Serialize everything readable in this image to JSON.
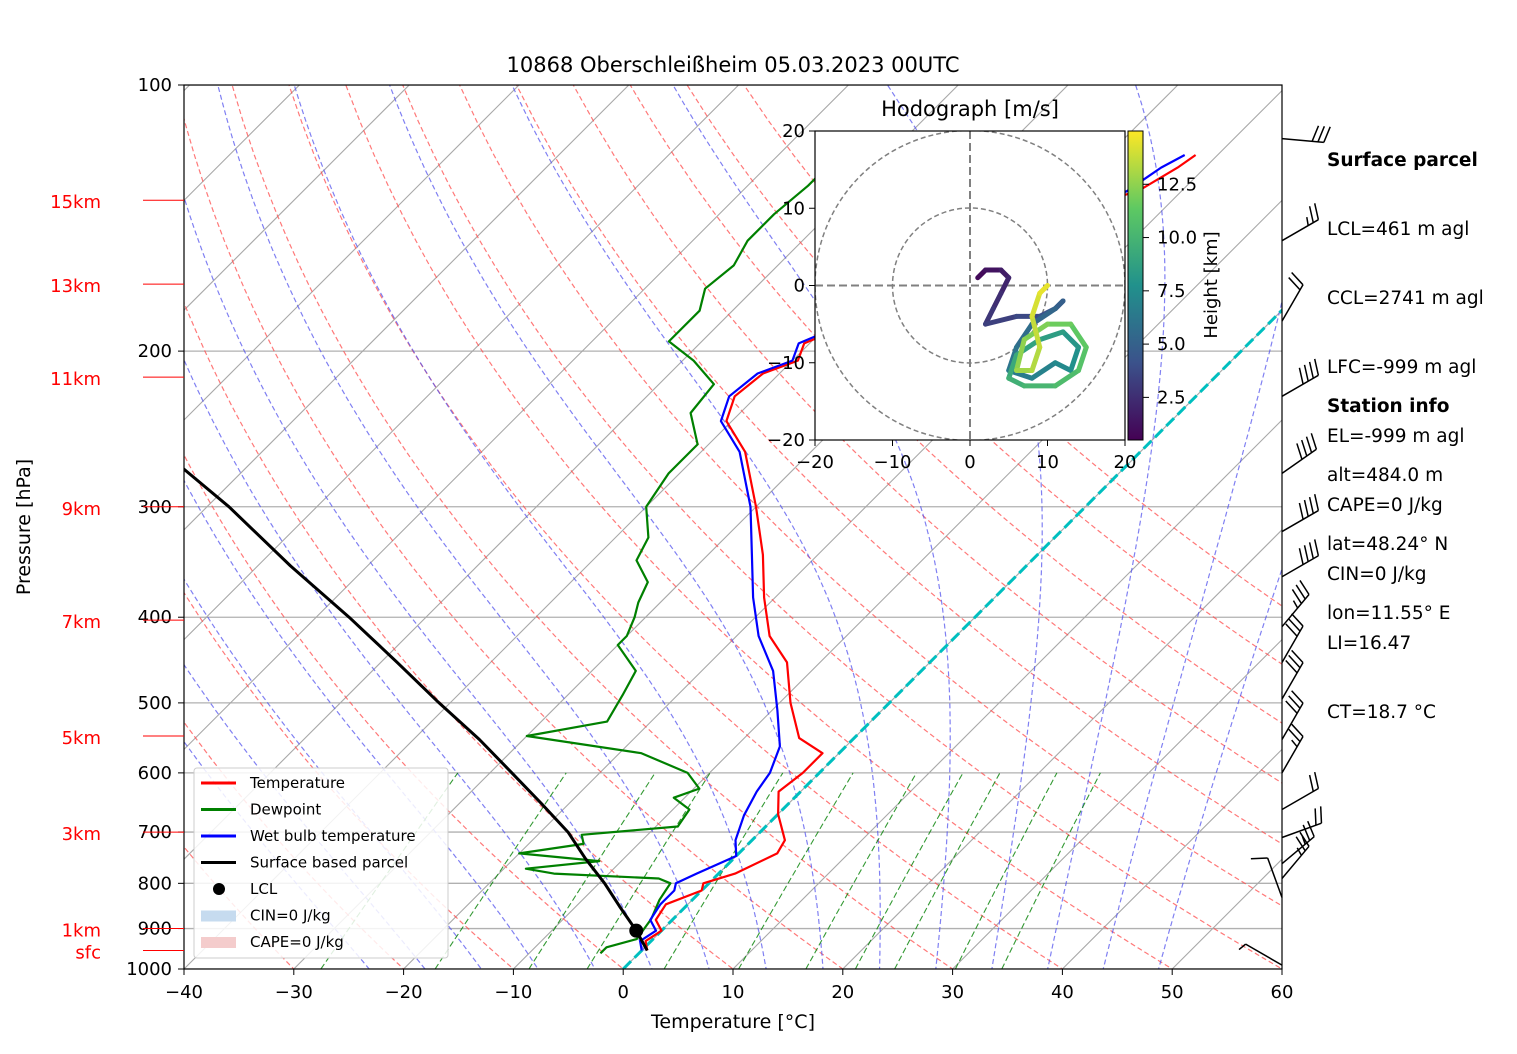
{
  "chart_data": {
    "type": "skew-t",
    "title": "10868 Oberschleißheim 05.03.2023 00UTC",
    "xlabel": "Temperature [°C]",
    "ylabel": "Pressure [hPa]",
    "xlim": [
      -40,
      60
    ],
    "ylim": [
      1000,
      100
    ],
    "y_scale": "log",
    "x_ticks": [
      -40,
      -30,
      -20,
      -10,
      0,
      10,
      20,
      30,
      40,
      50,
      60
    ],
    "y_ticks": [
      100,
      200,
      300,
      400,
      500,
      600,
      700,
      800,
      900,
      1000
    ],
    "height_labels": [
      {
        "label": "15km",
        "p": 135
      },
      {
        "label": "13km",
        "p": 168
      },
      {
        "label": "11km",
        "p": 214
      },
      {
        "label": "9km",
        "p": 300
      },
      {
        "label": "7km",
        "p": 403
      },
      {
        "label": "5km",
        "p": 545
      },
      {
        "label": "3km",
        "p": 700
      },
      {
        "label": "1km",
        "p": 900
      },
      {
        "label": "sfc",
        "p": 953
      }
    ],
    "series": [
      {
        "name": "Temperature",
        "color": "#ff0000",
        "points": [
          [
            0.5,
            953
          ],
          [
            -0.5,
            930
          ],
          [
            0.0,
            905
          ],
          [
            -1.5,
            880
          ],
          [
            -2.0,
            845
          ],
          [
            0.0,
            815
          ],
          [
            -0.5,
            800
          ],
          [
            1.5,
            780
          ],
          [
            3.5,
            740
          ],
          [
            3.0,
            715
          ],
          [
            0.0,
            668
          ],
          [
            -2.0,
            630
          ],
          [
            -1.5,
            600
          ],
          [
            -1.5,
            570
          ],
          [
            -5.0,
            548
          ],
          [
            -9.0,
            500
          ],
          [
            -13.0,
            450
          ],
          [
            -17.0,
            420
          ],
          [
            -21.0,
            380
          ],
          [
            -25.0,
            340
          ],
          [
            -30.0,
            300
          ],
          [
            -36.0,
            260
          ],
          [
            -40.5,
            240
          ],
          [
            -42.0,
            225
          ],
          [
            -41.5,
            212
          ],
          [
            -39.5,
            205
          ],
          [
            -40.5,
            196
          ],
          [
            -38.5,
            188
          ],
          [
            -39.5,
            180
          ],
          [
            -37.0,
            170
          ],
          [
            -36.5,
            160
          ],
          [
            -32.0,
            150
          ],
          [
            -31.0,
            142
          ],
          [
            -24.0,
            132
          ],
          [
            -22.5,
            124
          ],
          [
            -22.0,
            120
          ]
        ]
      },
      {
        "name": "Dewpoint",
        "color": "#008000",
        "points": [
          [
            -3.5,
            960
          ],
          [
            -3.5,
            945
          ],
          [
            -1.5,
            925
          ],
          [
            -2.0,
            878
          ],
          [
            -3.0,
            835
          ],
          [
            -3.5,
            800
          ],
          [
            -5.0,
            790
          ],
          [
            -15.0,
            780
          ],
          [
            -18.0,
            770
          ],
          [
            -12.0,
            755
          ],
          [
            -20.0,
            740
          ],
          [
            -15.0,
            722
          ],
          [
            -16.0,
            705
          ],
          [
            -8.0,
            690
          ],
          [
            -8.5,
            660
          ],
          [
            -11.0,
            640
          ],
          [
            -9.5,
            625
          ],
          [
            -12.0,
            600
          ],
          [
            -18.0,
            570
          ],
          [
            -30.0,
            545
          ],
          [
            -24.0,
            525
          ],
          [
            -25.0,
            490
          ],
          [
            -26.0,
            460
          ],
          [
            -30.0,
            430
          ],
          [
            -30.0,
            420
          ],
          [
            -31.0,
            400
          ],
          [
            -32.0,
            385
          ],
          [
            -33.0,
            365
          ],
          [
            -36.0,
            345
          ],
          [
            -37.0,
            325
          ],
          [
            -40.0,
            300
          ],
          [
            -41.0,
            275
          ],
          [
            -41.0,
            255
          ],
          [
            -44.5,
            235
          ],
          [
            -45.0,
            218
          ],
          [
            -49.0,
            205
          ],
          [
            -53.0,
            195
          ],
          [
            -53.0,
            180
          ],
          [
            -54.5,
            170
          ],
          [
            -54.0,
            160
          ],
          [
            -55.0,
            150
          ],
          [
            -55.0,
            140
          ],
          [
            -54.5,
            130
          ],
          [
            -54.5,
            124
          ]
        ]
      },
      {
        "name": "Wet bulb temperature",
        "color": "#0000ff",
        "points": [
          [
            0.0,
            953
          ],
          [
            -1.0,
            930
          ],
          [
            -0.5,
            905
          ],
          [
            -2.0,
            880
          ],
          [
            -2.5,
            845
          ],
          [
            -2.5,
            815
          ],
          [
            -3.0,
            800
          ],
          [
            -2.0,
            780
          ],
          [
            0.0,
            745
          ],
          [
            -1.5,
            715
          ],
          [
            -3.0,
            670
          ],
          [
            -4.0,
            630
          ],
          [
            -4.5,
            600
          ],
          [
            -6.0,
            560
          ],
          [
            -9.5,
            510
          ],
          [
            -13.5,
            460
          ],
          [
            -18.0,
            420
          ],
          [
            -22.0,
            380
          ],
          [
            -26.0,
            340
          ],
          [
            -30.5,
            300
          ],
          [
            -36.5,
            260
          ],
          [
            -41.0,
            240
          ],
          [
            -42.5,
            225
          ],
          [
            -42.0,
            212
          ],
          [
            -40.0,
            205
          ],
          [
            -41.0,
            196
          ],
          [
            -39.0,
            188
          ],
          [
            -40.0,
            180
          ],
          [
            -37.5,
            170
          ],
          [
            -37.0,
            160
          ],
          [
            -33.0,
            150
          ],
          [
            -31.5,
            142
          ],
          [
            -25.0,
            132
          ],
          [
            -24.0,
            124
          ],
          [
            -23.0,
            120
          ]
        ]
      },
      {
        "name": "Surface based parcel",
        "color": "#000000",
        "points": [
          [
            0.5,
            953
          ],
          [
            -2.3,
            905
          ],
          [
            -6.0,
            850
          ],
          [
            -9.5,
            800
          ],
          [
            -13.5,
            750
          ],
          [
            -17.5,
            700
          ],
          [
            -22.5,
            650
          ],
          [
            -28.0,
            600
          ],
          [
            -34.0,
            550
          ],
          [
            -41.0,
            500
          ],
          [
            -48.5,
            450
          ],
          [
            -57.0,
            400
          ],
          [
            -67.0,
            350
          ],
          [
            -78.0,
            300
          ],
          [
            -92.0,
            250
          ]
        ]
      },
      {
        "name": "LCL",
        "color": "#000000",
        "points": [
          [
            -2.3,
            905
          ]
        ]
      },
      {
        "name": "CIN=0 J/kg",
        "color": "#c6dbef",
        "points": []
      },
      {
        "name": "CAPE=0 J/kg",
        "color": "#f4cccc",
        "points": []
      }
    ],
    "legend_position": "lower-left",
    "grid": true,
    "hodograph": {
      "title": "Hodograph [m/s]",
      "xlim": [
        -20,
        20
      ],
      "ylim": [
        -20,
        20
      ],
      "ticks": [
        -20,
        -10,
        0,
        10,
        20
      ],
      "colorbar_label": "Height [km]",
      "colorbar_ticks": [
        "2.5",
        "5.0",
        "7.5",
        "10.0",
        "12.5"
      ],
      "colorbar_range": [
        0.5,
        15.0
      ],
      "colormap": "viridis",
      "points": [
        [
          1,
          1,
          0.5
        ],
        [
          2,
          2,
          0.9
        ],
        [
          4,
          2,
          1.3
        ],
        [
          5,
          1,
          1.7
        ],
        [
          4,
          -1,
          2.1
        ],
        [
          3,
          -3,
          2.5
        ],
        [
          2,
          -5,
          2.9
        ],
        [
          6,
          -4,
          3.3
        ],
        [
          9,
          -4,
          3.7
        ],
        [
          11,
          -3,
          4.1
        ],
        [
          12,
          -2,
          4.5
        ],
        [
          11,
          -3,
          4.9
        ],
        [
          8,
          -5,
          5.3
        ],
        [
          6,
          -8,
          5.7
        ],
        [
          5,
          -11,
          6.1
        ],
        [
          8,
          -12,
          6.5
        ],
        [
          11,
          -10,
          6.9
        ],
        [
          13,
          -11,
          7.3
        ],
        [
          14,
          -8,
          7.7
        ],
        [
          12,
          -6,
          8.1
        ],
        [
          9,
          -7,
          8.5
        ],
        [
          6,
          -9,
          8.9
        ],
        [
          5,
          -12,
          9.3
        ],
        [
          7,
          -13,
          9.7
        ],
        [
          11,
          -13,
          10.1
        ],
        [
          14,
          -11,
          10.5
        ],
        [
          15,
          -8,
          10.9
        ],
        [
          13,
          -5,
          11.3
        ],
        [
          10,
          -5,
          11.7
        ],
        [
          7,
          -7,
          12.1
        ],
        [
          6,
          -11,
          12.5
        ],
        [
          8,
          -11,
          12.9
        ],
        [
          9,
          -8,
          13.3
        ],
        [
          8,
          -4,
          13.7
        ],
        [
          9,
          -1,
          14.1
        ],
        [
          10,
          0,
          14.5
        ]
      ]
    },
    "wind_barbs": [
      {
        "p": 115,
        "speed_kt": 30,
        "dir_deg": 265
      },
      {
        "p": 150,
        "speed_kt": 25,
        "dir_deg": 300
      },
      {
        "p": 185,
        "speed_kt": 20,
        "dir_deg": 330
      },
      {
        "p": 225,
        "speed_kt": 40,
        "dir_deg": 300
      },
      {
        "p": 275,
        "speed_kt": 40,
        "dir_deg": 305
      },
      {
        "p": 320,
        "speed_kt": 40,
        "dir_deg": 300
      },
      {
        "p": 360,
        "speed_kt": 40,
        "dir_deg": 300
      },
      {
        "p": 410,
        "speed_kt": 35,
        "dir_deg": 320
      },
      {
        "p": 450,
        "speed_kt": 30,
        "dir_deg": 330
      },
      {
        "p": 495,
        "speed_kt": 30,
        "dir_deg": 330
      },
      {
        "p": 550,
        "speed_kt": 30,
        "dir_deg": 330
      },
      {
        "p": 600,
        "speed_kt": 25,
        "dir_deg": 330
      },
      {
        "p": 660,
        "speed_kt": 20,
        "dir_deg": 300
      },
      {
        "p": 710,
        "speed_kt": 20,
        "dir_deg": 290
      },
      {
        "p": 760,
        "speed_kt": 25,
        "dir_deg": 310
      },
      {
        "p": 790,
        "speed_kt": 25,
        "dir_deg": 320
      },
      {
        "p": 830,
        "speed_kt": 10,
        "dir_deg": 20
      },
      {
        "p": 990,
        "speed_kt": 5,
        "dir_deg": 60
      }
    ]
  },
  "surface_parcel": {
    "heading": "Surface parcel",
    "lines": [
      "LCL=461 m agl",
      "CCL=2741 m agl",
      "LFC=-999 m agl",
      "EL=-999 m agl",
      "CAPE=0 J/kg",
      "CIN=0 J/kg",
      "LI=16.47",
      "CT=18.7 °C"
    ]
  },
  "station_info": {
    "heading": "Station info",
    "lines": [
      "alt=484.0 m",
      "lat=48.24° N",
      "lon=11.55° E"
    ]
  }
}
